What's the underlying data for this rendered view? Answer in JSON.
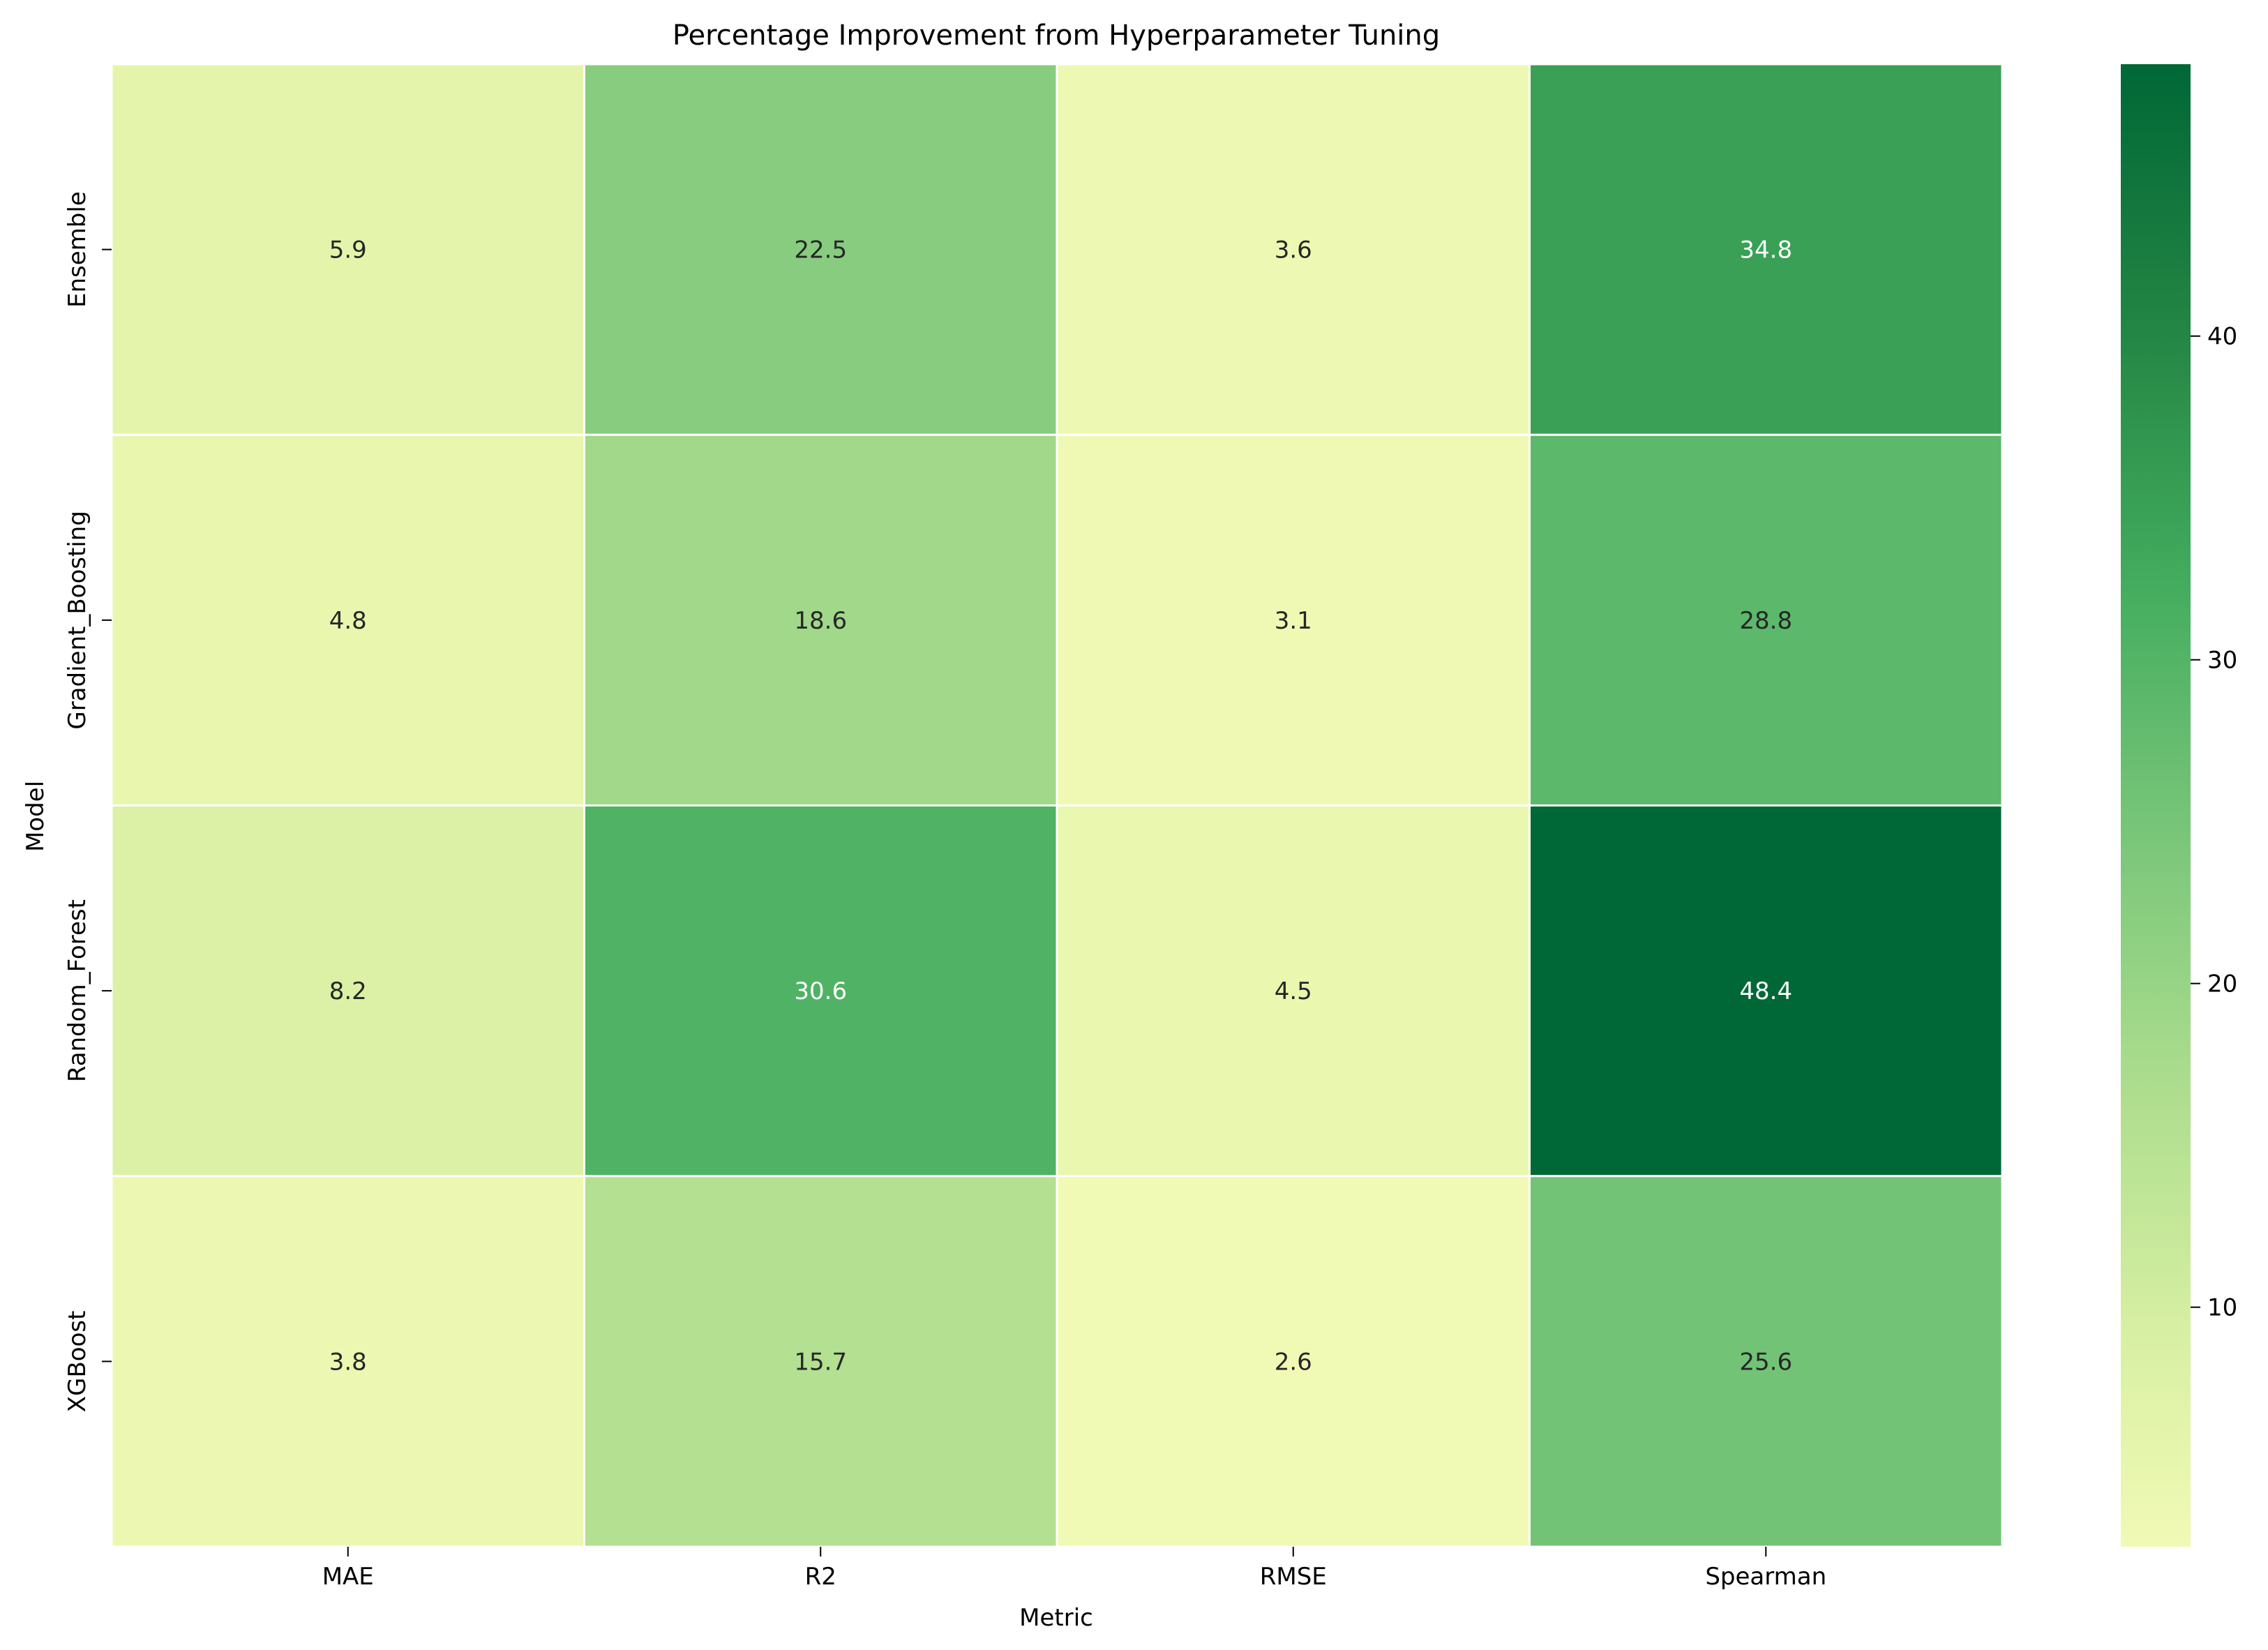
{
  "chart_data": {
    "type": "heatmap",
    "title": "Percentage Improvement from Hyperparameter Tuning",
    "xlabel": "Metric",
    "ylabel": "Model",
    "columns": [
      "MAE",
      "R2",
      "RMSE",
      "Spearman"
    ],
    "rows": [
      "Ensemble",
      "Gradient_Boosting",
      "Random_Forest",
      "XGBoost"
    ],
    "values": [
      [
        5.9,
        22.5,
        3.6,
        34.8
      ],
      [
        4.8,
        18.6,
        3.1,
        28.8
      ],
      [
        8.2,
        30.6,
        4.5,
        48.4
      ],
      [
        3.8,
        15.7,
        2.6,
        25.6
      ]
    ],
    "colorscale": "YlGn",
    "color_range": [
      2.6,
      48.4
    ],
    "colorbar_ticks": [
      10,
      20,
      30,
      40
    ],
    "grid_line_color": "#ffffff"
  }
}
